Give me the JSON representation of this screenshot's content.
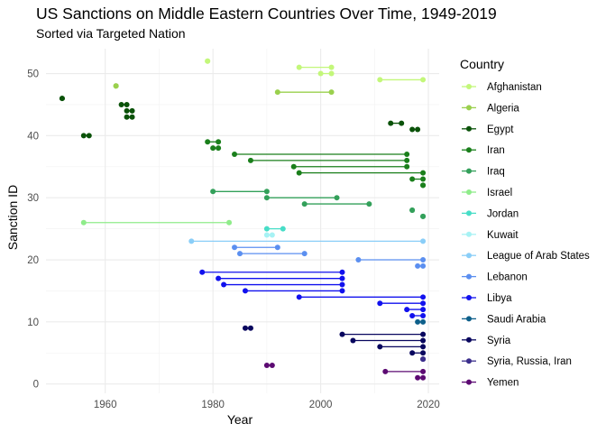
{
  "chart_data": {
    "type": "dumbbell",
    "title": "US Sanctions on Middle Eastern Countries Over Time, 1949-2019",
    "subtitle": "Sorted via Targeted Nation",
    "xlabel": "Year",
    "ylabel": "Sanction ID",
    "xlim": [
      1949,
      2022
    ],
    "ylim": [
      -1.5,
      54
    ],
    "x_ticks": [
      1960,
      1980,
      2000,
      2020
    ],
    "y_ticks": [
      0,
      10,
      20,
      30,
      40,
      50
    ],
    "grid": true,
    "legend": {
      "title": "Country",
      "position": "right"
    },
    "series": [
      {
        "name": "Afghanistan",
        "color": "#c3f77a",
        "sanctions": [
          {
            "id": 52,
            "start": 1979,
            "end": 1979
          },
          {
            "id": 51,
            "start": 1996,
            "end": 2002
          },
          {
            "id": 50,
            "start": 2000,
            "end": 2002
          },
          {
            "id": 49,
            "start": 2011,
            "end": 2019
          }
        ]
      },
      {
        "name": "Algeria",
        "color": "#9ad04d",
        "sanctions": [
          {
            "id": 48,
            "start": 1962,
            "end": 1962
          },
          {
            "id": 47,
            "start": 1992,
            "end": 2002
          }
        ]
      },
      {
        "name": "Egypt",
        "color": "#0a5209",
        "sanctions": [
          {
            "id": 46,
            "start": 1952,
            "end": 1952
          },
          {
            "id": 45,
            "start": 1963,
            "end": 1964
          },
          {
            "id": 44,
            "start": 1964,
            "end": 1965
          },
          {
            "id": 43,
            "start": 1964,
            "end": 1965
          },
          {
            "id": 42,
            "start": 2013,
            "end": 2015
          },
          {
            "id": 41,
            "start": 2017,
            "end": 2018
          },
          {
            "id": 40,
            "start": 1956,
            "end": 1957
          }
        ]
      },
      {
        "name": "Iran",
        "color": "#1a7f1b",
        "sanctions": [
          {
            "id": 39,
            "start": 1979,
            "end": 1981
          },
          {
            "id": 38,
            "start": 1980,
            "end": 1981
          },
          {
            "id": 37,
            "start": 1984,
            "end": 2016
          },
          {
            "id": 36,
            "start": 1987,
            "end": 2016
          },
          {
            "id": 35,
            "start": 1995,
            "end": 2016
          },
          {
            "id": 34,
            "start": 1996,
            "end": 2019
          },
          {
            "id": 33,
            "start": 2017,
            "end": 2019
          },
          {
            "id": 32,
            "start": 2019,
            "end": 2019
          }
        ]
      },
      {
        "name": "Iraq",
        "color": "#33a05a",
        "sanctions": [
          {
            "id": 31,
            "start": 1980,
            "end": 1990
          },
          {
            "id": 30,
            "start": 1990,
            "end": 2003
          },
          {
            "id": 29,
            "start": 1997,
            "end": 2009
          },
          {
            "id": 28,
            "start": 2017,
            "end": 2017
          },
          {
            "id": 27,
            "start": 2019,
            "end": 2019
          }
        ]
      },
      {
        "name": "Israel",
        "color": "#8fec8a",
        "sanctions": [
          {
            "id": 26,
            "start": 1956,
            "end": 1983
          }
        ]
      },
      {
        "name": "Jordan",
        "color": "#47ddc7",
        "sanctions": [
          {
            "id": 25,
            "start": 1990,
            "end": 1993
          }
        ]
      },
      {
        "name": "Kuwait",
        "color": "#a7f2f4",
        "sanctions": [
          {
            "id": 24,
            "start": 1990,
            "end": 1991
          }
        ]
      },
      {
        "name": "League of Arab States",
        "color": "#8acef8",
        "sanctions": [
          {
            "id": 23,
            "start": 1976,
            "end": 2019
          }
        ]
      },
      {
        "name": "Lebanon",
        "color": "#5b8ff0",
        "sanctions": [
          {
            "id": 22,
            "start": 1984,
            "end": 1992
          },
          {
            "id": 21,
            "start": 1985,
            "end": 1997
          },
          {
            "id": 20,
            "start": 2007,
            "end": 2019
          },
          {
            "id": 19,
            "start": 2018,
            "end": 2019
          }
        ]
      },
      {
        "name": "Libya",
        "color": "#1111ee",
        "sanctions": [
          {
            "id": 18,
            "start": 1978,
            "end": 2004
          },
          {
            "id": 17,
            "start": 1981,
            "end": 2004
          },
          {
            "id": 16,
            "start": 1982,
            "end": 2004
          },
          {
            "id": 15,
            "start": 1986,
            "end": 2004
          },
          {
            "id": 14,
            "start": 1996,
            "end": 2019
          },
          {
            "id": 13,
            "start": 2011,
            "end": 2019
          },
          {
            "id": 12,
            "start": 2016,
            "end": 2019
          },
          {
            "id": 11,
            "start": 2017,
            "end": 2019
          }
        ]
      },
      {
        "name": "Saudi Arabia",
        "color": "#0d5f8a",
        "sanctions": [
          {
            "id": 10,
            "start": 2018,
            "end": 2019
          }
        ]
      },
      {
        "name": "Syria",
        "color": "#08065e",
        "sanctions": [
          {
            "id": 9,
            "start": 1986,
            "end": 1987
          },
          {
            "id": 8,
            "start": 2004,
            "end": 2019
          },
          {
            "id": 7,
            "start": 2006,
            "end": 2019
          },
          {
            "id": 6,
            "start": 2011,
            "end": 2019
          },
          {
            "id": 5,
            "start": 2017,
            "end": 2019
          }
        ]
      },
      {
        "name": "Syria, Russia, Iran",
        "color": "#3b2e8c",
        "sanctions": [
          {
            "id": 4,
            "start": 2019,
            "end": 2019
          }
        ]
      },
      {
        "name": "Yemen",
        "color": "#5c0a72",
        "sanctions": [
          {
            "id": 3,
            "start": 1990,
            "end": 1991
          },
          {
            "id": 2,
            "start": 2012,
            "end": 2019
          },
          {
            "id": 1,
            "start": 2018,
            "end": 2019
          }
        ]
      }
    ]
  }
}
